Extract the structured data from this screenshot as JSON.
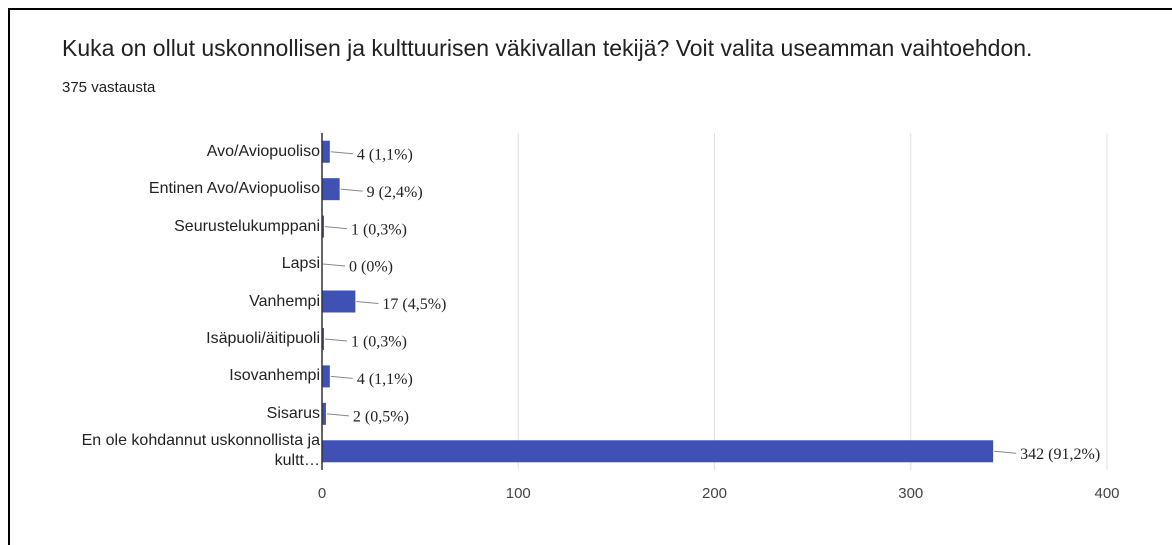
{
  "chart_data": {
    "type": "hbar",
    "title": "Kuka on ollut uskonnollisen ja kulttuurisen väkivallan tekijä? Voit valita useamman vaihtoehdon.",
    "subtitle": "375 vastausta",
    "categories": [
      "Avo/Aviopuoliso",
      "Entinen Avo/Aviopuoliso",
      "Seurustelukumppani",
      "Lapsi",
      "Vanhempi",
      "Isäpuoli/äitipuoli",
      "Isovanhempi",
      "Sisarus",
      "En ole kohdannut uskonnollista ja\nkultt…"
    ],
    "values": [
      4,
      9,
      1,
      0,
      17,
      1,
      4,
      2,
      342
    ],
    "value_labels": [
      "4 (1,1%)",
      "9 (2,4%)",
      "1 (0,3%)",
      "0 (0%)",
      "17 (4,5%)",
      "1 (0,3%)",
      "4 (1,1%)",
      "2 (0,5%)",
      "342 (91,2%)"
    ],
    "color": "#3f51b5",
    "xlim": [
      0,
      400
    ],
    "xticks": [
      0,
      100,
      200,
      300,
      400
    ],
    "grid": true
  }
}
